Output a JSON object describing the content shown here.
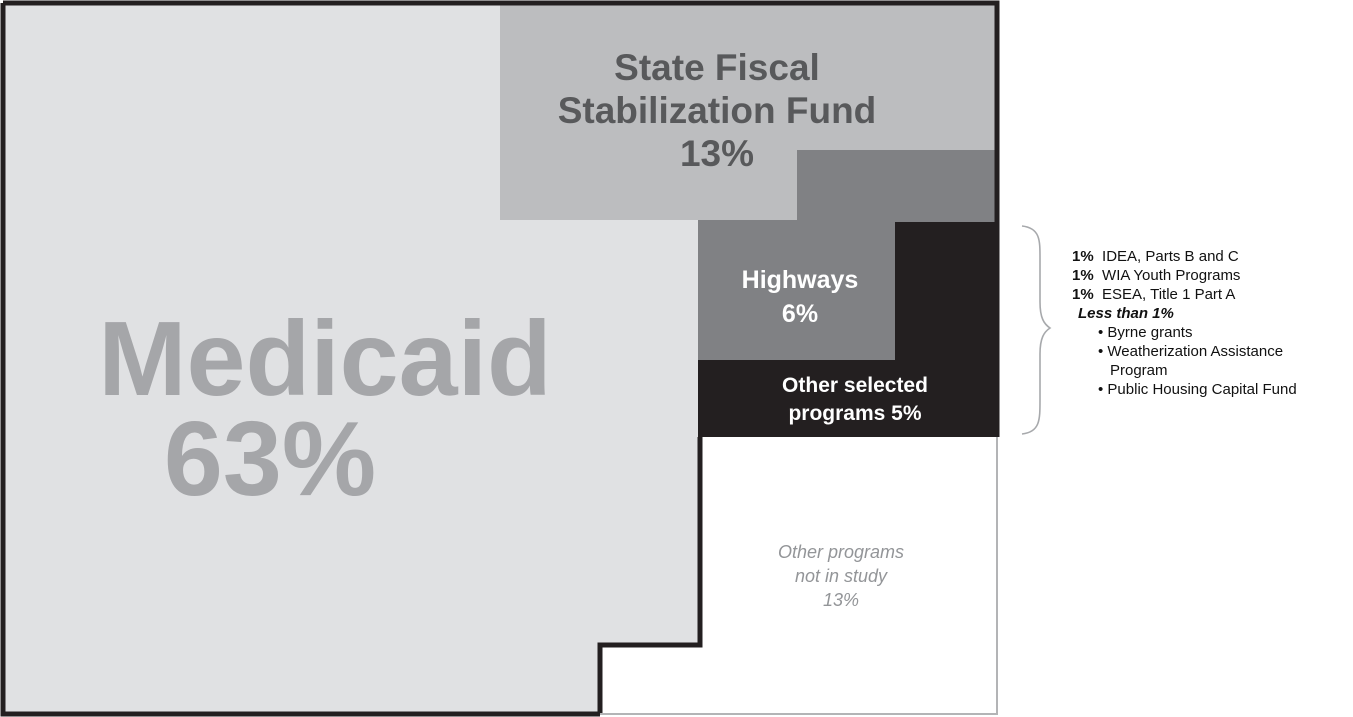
{
  "chart_data": {
    "type": "treemap",
    "title": "",
    "segments": [
      {
        "name": "Medicaid",
        "pct_label": "63%",
        "value": 63,
        "color": "#e0e1e3",
        "text_color": "#a5a6a9"
      },
      {
        "name_lines": [
          "State Fiscal",
          "Stabilization Fund"
        ],
        "pct_label": "13%",
        "value": 13,
        "color": "#bcbdbf",
        "text_color": "#58595b"
      },
      {
        "name": "Highways",
        "pct_label": "6%",
        "value": 6,
        "color": "#808184",
        "text_color": "#ffffff"
      },
      {
        "name_lines": [
          "Other selected",
          "programs 5%"
        ],
        "value": 5,
        "color": "#231f20",
        "text_color": "#ffffff"
      },
      {
        "name_lines": [
          "Other programs",
          "not in study",
          "13%"
        ],
        "value": 13,
        "color": "#ffffff",
        "text_color": "#939598"
      }
    ],
    "breakdown": {
      "items": [
        {
          "pct": "1%",
          "label": "IDEA, Parts B and C"
        },
        {
          "pct": "1%",
          "label": "WIA Youth Programs"
        },
        {
          "pct": "1%",
          "label": "ESEA, Title 1 Part A"
        }
      ],
      "less_than_label": "Less than 1%",
      "less_than_items": [
        {
          "lines": [
            "Byrne grants"
          ]
        },
        {
          "lines": [
            "Weatherization Assistance",
            "Program"
          ]
        },
        {
          "lines": [
            "Public Housing Capital Fund"
          ]
        }
      ]
    }
  }
}
